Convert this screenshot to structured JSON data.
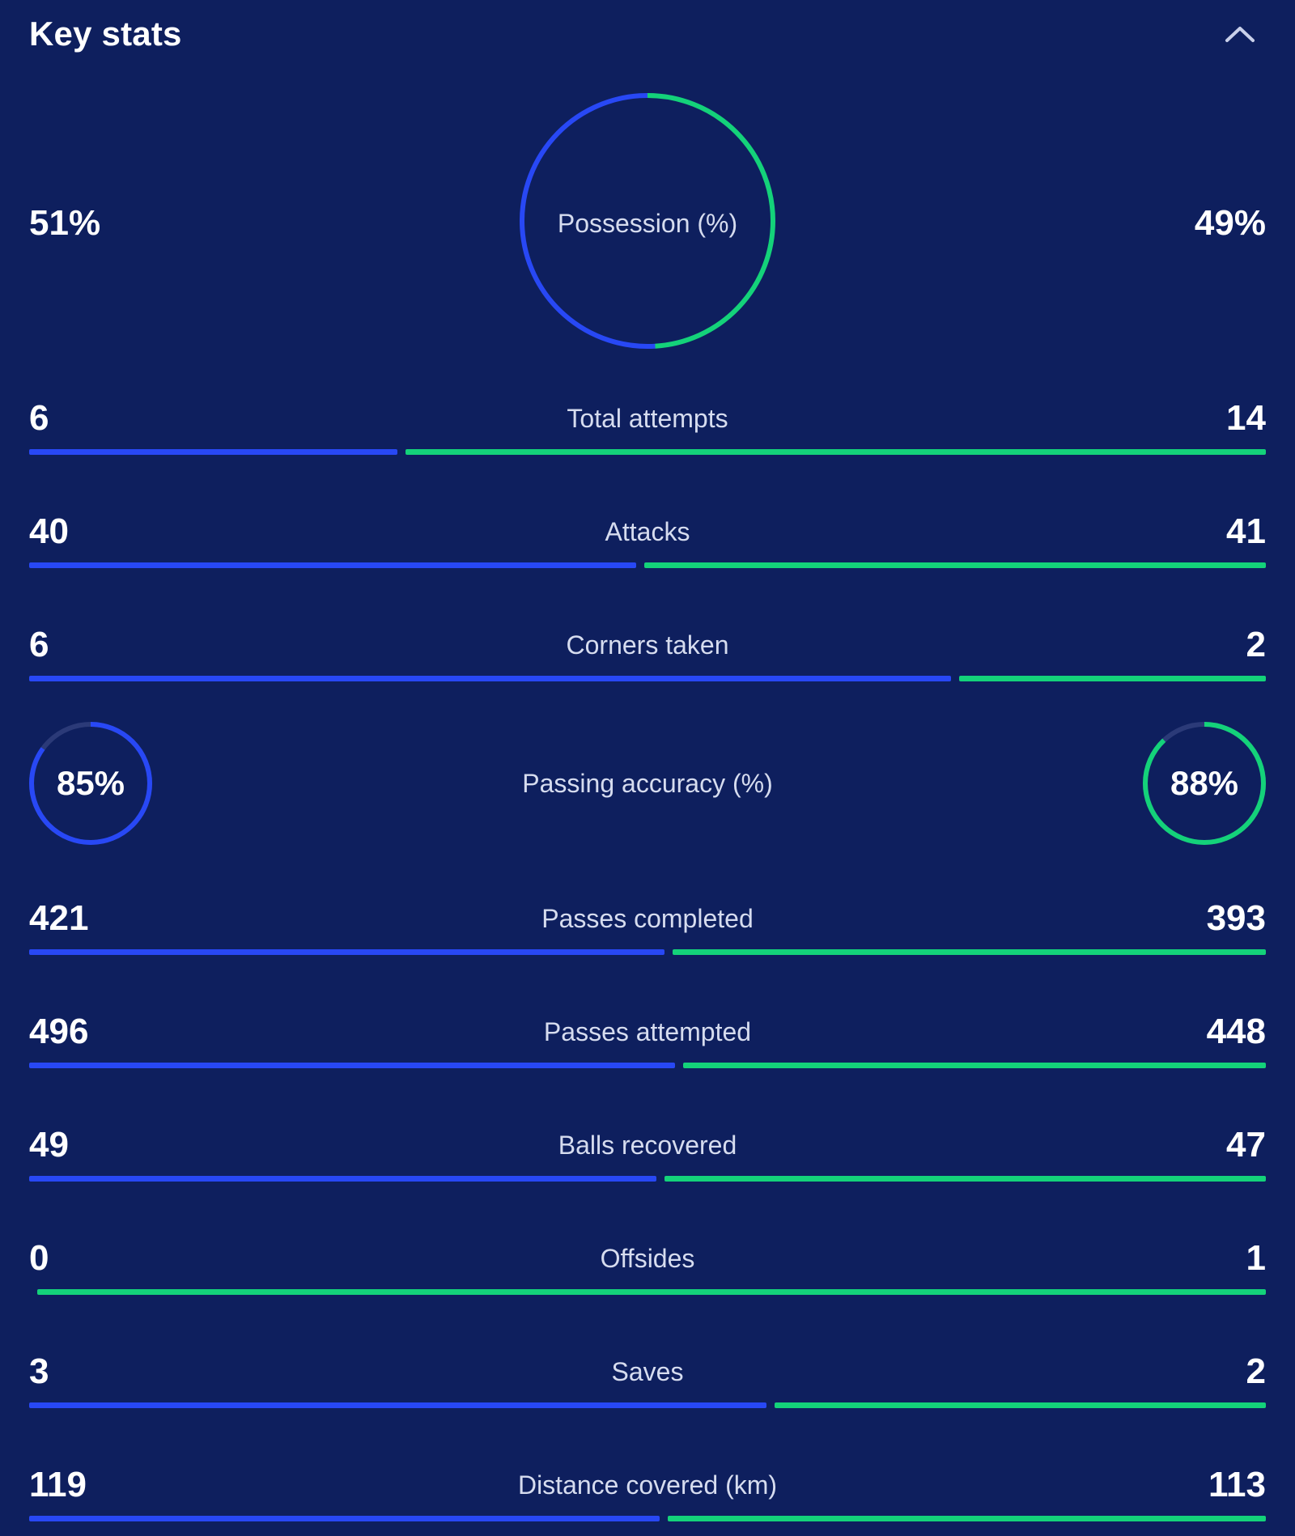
{
  "header": {
    "title": "Key stats",
    "collapse_icon": "chevron-up-icon"
  },
  "colors": {
    "background": "#0e1f5e",
    "team_left": "#2848f5",
    "team_right": "#14d27a",
    "track": "#2b3a78"
  },
  "possession": {
    "label": "Possession (%)",
    "left": "51%",
    "right": "49%",
    "left_value": 51,
    "right_value": 49
  },
  "passing_accuracy": {
    "label": "Passing accuracy (%)",
    "left": "85%",
    "right": "88%",
    "left_value": 85,
    "right_value": 88
  },
  "stats_top": [
    {
      "label": "Total attempts",
      "left": "6",
      "right": "14",
      "left_value": 6,
      "right_value": 14
    },
    {
      "label": "Attacks",
      "left": "40",
      "right": "41",
      "left_value": 40,
      "right_value": 41
    },
    {
      "label": "Corners taken",
      "left": "6",
      "right": "2",
      "left_value": 6,
      "right_value": 2
    }
  ],
  "stats_bottom": [
    {
      "label": "Passes completed",
      "left": "421",
      "right": "393",
      "left_value": 421,
      "right_value": 393
    },
    {
      "label": "Passes attempted",
      "left": "496",
      "right": "448",
      "left_value": 496,
      "right_value": 448
    },
    {
      "label": "Balls recovered",
      "left": "49",
      "right": "47",
      "left_value": 49,
      "right_value": 47
    },
    {
      "label": "Offsides",
      "left": "0",
      "right": "1",
      "left_value": 0,
      "right_value": 1
    },
    {
      "label": "Saves",
      "left": "3",
      "right": "2",
      "left_value": 3,
      "right_value": 2
    },
    {
      "label": "Distance covered (km)",
      "left": "119",
      "right": "113",
      "left_value": 119,
      "right_value": 113
    }
  ]
}
